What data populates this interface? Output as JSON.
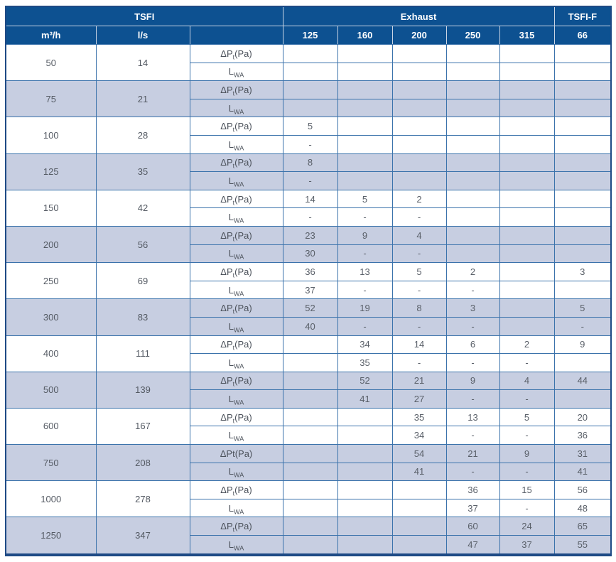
{
  "title": "TSFI duct fan performance table",
  "colors": {
    "header_bg": "#0d5191",
    "header_text": "#ffffff",
    "shaded_row_bg": "#c7cee1",
    "grid_border": "#3a72ab",
    "outer_border": "#1e4a85",
    "value_text": "#5a6069"
  },
  "header": {
    "group_tsfi": "TSFI",
    "group_exhaust": "Exhaust",
    "group_tsfif": "TSFI-F",
    "col_m3h": "m³/h",
    "col_ls": "l/s",
    "sizes": [
      "125",
      "160",
      "200",
      "250",
      "315"
    ],
    "size_tsfif": "66"
  },
  "rows": [
    {
      "m3h": "50",
      "ls": "14",
      "dp_pre": "ΔP",
      "dp_sub": "t",
      "dp_post": "(Pa)",
      "lwa_pre": "L",
      "lwa_sub": "WA",
      "dp": [
        "",
        "",
        "",
        "",
        "",
        ""
      ],
      "lwa": [
        "",
        "",
        "",
        "",
        "",
        ""
      ]
    },
    {
      "m3h": "75",
      "ls": "21",
      "dp_pre": "ΔP",
      "dp_sub": "t",
      "dp_post": "(Pa)",
      "lwa_pre": "L",
      "lwa_sub": "WA",
      "dp": [
        "",
        "",
        "",
        "",
        "",
        ""
      ],
      "lwa": [
        "",
        "",
        "",
        "",
        "",
        ""
      ]
    },
    {
      "m3h": "100",
      "ls": "28",
      "dp_pre": "ΔP",
      "dp_sub": "t",
      "dp_post": "(Pa)",
      "lwa_pre": "L",
      "lwa_sub": "WA",
      "dp": [
        "5",
        "",
        "",
        "",
        "",
        ""
      ],
      "lwa": [
        "-",
        "",
        "",
        "",
        "",
        ""
      ]
    },
    {
      "m3h": "125",
      "ls": "35",
      "dp_pre": "ΔP",
      "dp_sub": "t",
      "dp_post": "(Pa)",
      "lwa_pre": "L",
      "lwa_sub": "WA",
      "dp": [
        "8",
        "",
        "",
        "",
        "",
        ""
      ],
      "lwa": [
        "-",
        "",
        "",
        "",
        "",
        ""
      ]
    },
    {
      "m3h": "150",
      "ls": "42",
      "dp_pre": "ΔP",
      "dp_sub": "t",
      "dp_post": "(Pa)",
      "lwa_pre": "L",
      "lwa_sub": "WA",
      "dp": [
        "14",
        "5",
        "2",
        "",
        "",
        ""
      ],
      "lwa": [
        "-",
        "-",
        "-",
        "",
        "",
        ""
      ]
    },
    {
      "m3h": "200",
      "ls": "56",
      "dp_pre": "ΔP",
      "dp_sub": "t",
      "dp_post": "(Pa)",
      "lwa_pre": "L",
      "lwa_sub": "WA",
      "dp": [
        "23",
        "9",
        "4",
        "",
        "",
        ""
      ],
      "lwa": [
        "30",
        "-",
        "-",
        "",
        "",
        ""
      ]
    },
    {
      "m3h": "250",
      "ls": "69",
      "dp_pre": "ΔP",
      "dp_sub": "t",
      "dp_post": "(Pa)",
      "lwa_pre": "L",
      "lwa_sub": "WA",
      "dp": [
        "36",
        "13",
        "5",
        "2",
        "",
        "3"
      ],
      "lwa": [
        "37",
        "-",
        "-",
        "-",
        "",
        ""
      ]
    },
    {
      "m3h": "300",
      "ls": "83",
      "dp_pre": "ΔP",
      "dp_sub": "t",
      "dp_post": "(Pa)",
      "lwa_pre": "L",
      "lwa_sub": "WA",
      "dp": [
        "52",
        "19",
        "8",
        "3",
        "",
        "5"
      ],
      "lwa": [
        "40",
        "-",
        "-",
        "-",
        "",
        "-"
      ]
    },
    {
      "m3h": "400",
      "ls": "111",
      "dp_pre": "ΔP",
      "dp_sub": "t",
      "dp_post": "(Pa)",
      "lwa_pre": "L",
      "lwa_sub": "WA",
      "dp": [
        "",
        "34",
        "14",
        "6",
        "2",
        "9"
      ],
      "lwa": [
        "",
        "35",
        "-",
        "-",
        "-",
        ""
      ]
    },
    {
      "m3h": "500",
      "ls": "139",
      "dp_pre": "ΔP",
      "dp_sub": "t",
      "dp_post": "(Pa)",
      "lwa_pre": "L",
      "lwa_sub": "WA",
      "dp": [
        "",
        "52",
        "21",
        "9",
        "4",
        "44"
      ],
      "lwa": [
        "",
        "41",
        "27",
        "-",
        "-",
        ""
      ]
    },
    {
      "m3h": "600",
      "ls": "167",
      "dp_pre": "ΔP",
      "dp_sub": "t",
      "dp_post": "(Pa)",
      "lwa_pre": "L",
      "lwa_sub": "WA",
      "dp": [
        "",
        "",
        "35",
        "13",
        "5",
        "20"
      ],
      "lwa": [
        "",
        "",
        "34",
        "-",
        "-",
        "36"
      ]
    },
    {
      "m3h": "750",
      "ls": "208",
      "dp_pre": "ΔPt",
      "dp_sub": "",
      "dp_post": "(Pa)",
      "lwa_pre": "L",
      "lwa_sub": "WA",
      "dp": [
        "",
        "",
        "54",
        "21",
        "9",
        "31"
      ],
      "lwa": [
        "",
        "",
        "41",
        "-",
        "-",
        "41"
      ]
    },
    {
      "m3h": "1000",
      "ls": "278",
      "dp_pre": "ΔP",
      "dp_sub": "t",
      "dp_post": "(Pa)",
      "lwa_pre": "L",
      "lwa_sub": "WA",
      "dp": [
        "",
        "",
        "",
        "36",
        "15",
        "56"
      ],
      "lwa": [
        "",
        "",
        "",
        "37",
        "-",
        "48"
      ]
    },
    {
      "m3h": "1250",
      "ls": "347",
      "dp_pre": "ΔP",
      "dp_sub": "t",
      "dp_post": "(Pa)",
      "lwa_pre": "L",
      "lwa_sub": "WA",
      "dp": [
        "",
        "",
        "",
        "60",
        "24",
        "65"
      ],
      "lwa": [
        "",
        "",
        "",
        "47",
        "37",
        "55"
      ]
    }
  ]
}
